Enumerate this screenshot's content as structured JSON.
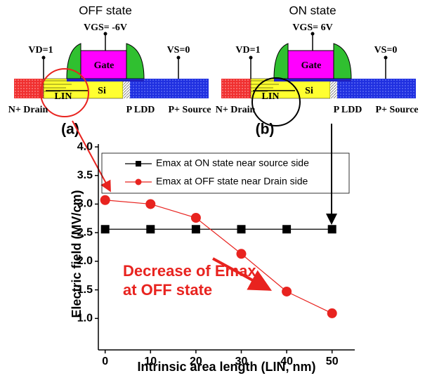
{
  "chart_data": {
    "type": "line",
    "xlabel": "Intrinsic area length (LIN, nm)",
    "ylabel": "Electric field (MV/cm)",
    "x": [
      0,
      10,
      20,
      30,
      40,
      50
    ],
    "series": [
      {
        "name": "Emax at ON state near source side",
        "color": "#000000",
        "marker": "square",
        "values": [
          2.56,
          2.56,
          2.56,
          2.56,
          2.56,
          2.56
        ]
      },
      {
        "name": "Emax at OFF state near Drain side",
        "color": "#e8231f",
        "marker": "circle",
        "values": [
          3.07,
          3.0,
          2.76,
          2.13,
          1.47,
          1.09
        ]
      }
    ],
    "xlim": [
      -1.5,
      55
    ],
    "xticks": [
      0,
      10,
      20,
      30,
      40,
      50
    ],
    "ylim": [
      0.45,
      4.05
    ],
    "yticks": [
      {
        "value": 1,
        "label": "1.0"
      },
      1.5,
      {
        "value": 2,
        "label": "2.0"
      },
      2.5,
      {
        "value": 3,
        "label": "3.0"
      },
      3.5,
      {
        "value": 4,
        "label": "4.0"
      }
    ],
    "annotations": [
      "Decrease of Emax",
      "at OFF state"
    ]
  },
  "diagrams": [
    {
      "state": "OFF state",
      "vgs": "VGS= -6V",
      "vd": "VD=1",
      "vs": "VS=0",
      "gate": "Gate",
      "si": "Si",
      "lin": "LIN",
      "drain": "N+ Drain",
      "ldd": "P LDD",
      "source": "P+ Source",
      "tag": "(a)"
    },
    {
      "state": "ON state",
      "vgs": "VGS= 6V",
      "vd": "VD=1",
      "vs": "VS=0",
      "gate": "Gate",
      "si": "Si",
      "lin": "LIN",
      "drain": "N+ Drain",
      "ldd": "P LDD",
      "source": "P+ Source",
      "tag": "(b)"
    }
  ]
}
